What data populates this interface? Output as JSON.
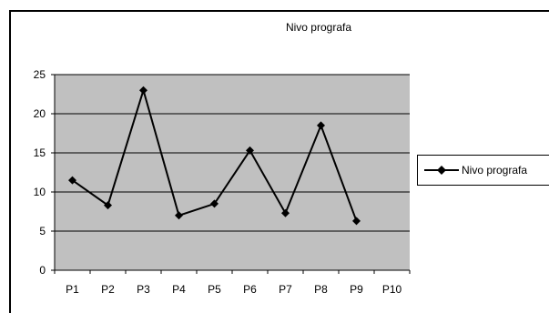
{
  "chart_data": {
    "type": "line",
    "title": "Nivo prografa",
    "xlabel": "",
    "ylabel": "",
    "categories": [
      "P1",
      "P2",
      "P3",
      "P4",
      "P5",
      "P6",
      "P7",
      "P8",
      "P9",
      "P10"
    ],
    "series": [
      {
        "name": "Nivo prografa",
        "values": [
          11.5,
          8.3,
          23,
          7,
          8.5,
          15.3,
          7.3,
          18.5,
          6.3,
          null
        ]
      }
    ],
    "ylim": [
      0,
      25
    ],
    "yticks": [
      0,
      5,
      10,
      15,
      20,
      25
    ],
    "grid": true,
    "legend": "right",
    "colors": {
      "plot_bg": "#c0c0c0",
      "line": "#000000",
      "grid": "#000000"
    }
  }
}
